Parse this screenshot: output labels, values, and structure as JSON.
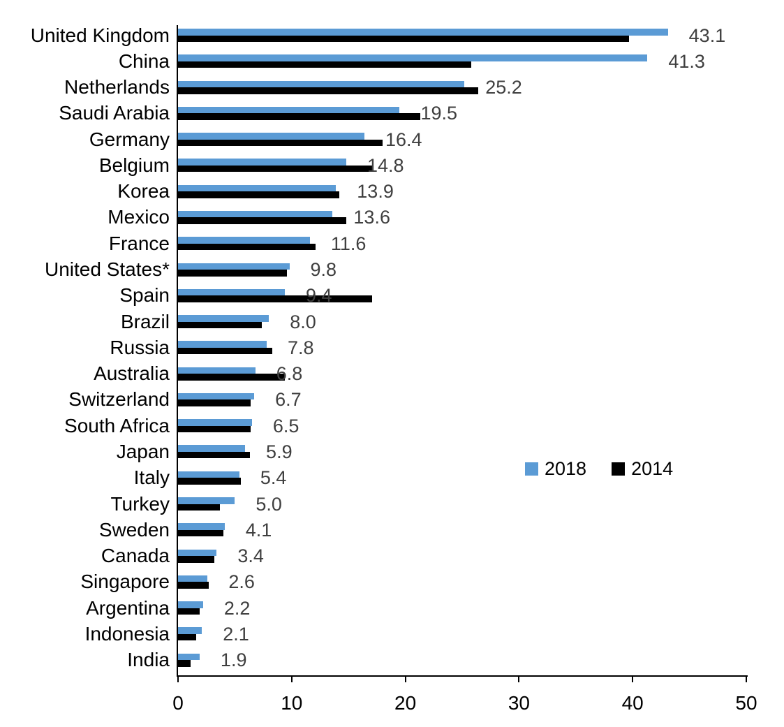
{
  "chart_data": {
    "type": "bar",
    "orientation": "horizontal",
    "title": "",
    "categories": [
      "United Kingdom",
      "China",
      "Netherlands",
      "Saudi Arabia",
      "Germany",
      "Belgium",
      "Korea",
      "Mexico",
      "France",
      "United States*",
      "Spain",
      "Brazil",
      "Russia",
      "Australia",
      "Switzerland",
      "South Africa",
      "Japan",
      "Italy",
      "Turkey",
      "Sweden",
      "Canada",
      "Singapore",
      "Argentina",
      "Indonesia",
      "India"
    ],
    "series": [
      {
        "name": "2018",
        "color": "#5B9BD5",
        "values": [
          43.1,
          41.3,
          25.2,
          19.5,
          16.4,
          14.8,
          13.9,
          13.6,
          11.6,
          9.8,
          9.4,
          8.0,
          7.8,
          6.8,
          6.7,
          6.5,
          5.9,
          5.4,
          5.0,
          4.1,
          3.4,
          2.6,
          2.2,
          2.1,
          1.9
        ]
      },
      {
        "name": "2014",
        "color": "#000000",
        "values": [
          39.7,
          25.8,
          26.4,
          21.3,
          18.0,
          17.2,
          14.2,
          14.8,
          12.1,
          9.6,
          17.1,
          7.4,
          8.3,
          9.4,
          6.4,
          6.4,
          6.3,
          5.5,
          3.7,
          4.0,
          3.2,
          2.7,
          1.9,
          1.6,
          1.1
        ]
      }
    ],
    "value_labels": {
      "series": "2018",
      "text": [
        "43.1",
        "41.3",
        "25.2",
        "19.5",
        "16.4",
        "14.8",
        "13.9",
        "13.6",
        "11.6",
        "9.8",
        "9.4",
        "8.0",
        "7.8",
        "6.8",
        "6.7",
        "6.5",
        "5.9",
        "5.4",
        "5.0",
        "4.1",
        "3.4",
        "2.6",
        "2.2",
        "2.1",
        "1.9"
      ],
      "color": "#3F3F3F"
    },
    "xlim": [
      0,
      50
    ],
    "x_ticks": [
      0,
      10,
      20,
      30,
      40,
      50
    ],
    "grid": false,
    "legend": {
      "position": "center-right",
      "entries": [
        "2018",
        "2014"
      ]
    },
    "axis_color": "#000000"
  }
}
